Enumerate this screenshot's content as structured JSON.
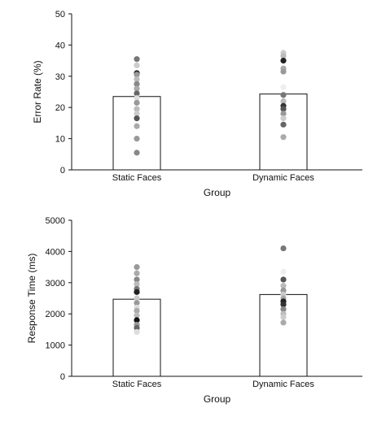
{
  "chart_data": [
    {
      "type": "bar",
      "categories": [
        "Static Faces",
        "Dynamic Faces"
      ],
      "values": [
        23.5,
        24.3
      ],
      "xlabel": "Group",
      "ylabel": "Error Rate (%)",
      "ylim": [
        0,
        50
      ],
      "yticks": [
        "0",
        "10",
        "20",
        "30",
        "40",
        "50"
      ],
      "grid": false,
      "individual_points": [
        [
          {
            "y": 35.5,
            "color": "#777777"
          },
          {
            "y": 33.5,
            "color": "#cccccc"
          },
          {
            "y": 31.0,
            "color": "#222222"
          },
          {
            "y": 30.5,
            "color": "#999999"
          },
          {
            "y": 29.0,
            "color": "#bbbbbb"
          },
          {
            "y": 27.5,
            "color": "#888888"
          },
          {
            "y": 26.0,
            "color": "#aaaaaa"
          },
          {
            "y": 24.5,
            "color": "#666666"
          },
          {
            "y": 23.0,
            "color": "#dddddd"
          },
          {
            "y": 21.5,
            "color": "#999999"
          },
          {
            "y": 19.5,
            "color": "#bbbbbb"
          },
          {
            "y": 18.0,
            "color": "#cccccc"
          },
          {
            "y": 16.5,
            "color": "#555555"
          },
          {
            "y": 14.0,
            "color": "#aaaaaa"
          },
          {
            "y": 10.0,
            "color": "#999999"
          },
          {
            "y": 5.5,
            "color": "#888888"
          }
        ],
        [
          {
            "y": 37.5,
            "color": "#cccccc"
          },
          {
            "y": 36.5,
            "color": "#bbbbbb"
          },
          {
            "y": 35.0,
            "color": "#222222"
          },
          {
            "y": 32.5,
            "color": "#aaaaaa"
          },
          {
            "y": 31.5,
            "color": "#999999"
          },
          {
            "y": 26.5,
            "color": "#eeeeee"
          },
          {
            "y": 24.0,
            "color": "#777777"
          },
          {
            "y": 22.0,
            "color": "#bbbbbb"
          },
          {
            "y": 20.5,
            "color": "#333333"
          },
          {
            "y": 19.5,
            "color": "#555555"
          },
          {
            "y": 18.0,
            "color": "#999999"
          },
          {
            "y": 16.5,
            "color": "#cccccc"
          },
          {
            "y": 14.5,
            "color": "#666666"
          },
          {
            "y": 10.5,
            "color": "#aaaaaa"
          }
        ]
      ]
    },
    {
      "type": "bar",
      "categories": [
        "Static Faces",
        "Dynamic Faces"
      ],
      "values": [
        2470,
        2620
      ],
      "xlabel": "Group",
      "ylabel": "Response Time (ms)",
      "ylim": [
        0,
        5000
      ],
      "yticks": [
        "0",
        "1000",
        "2000",
        "3000",
        "4000",
        "5000"
      ],
      "grid": false,
      "individual_points": [
        [
          {
            "y": 3500,
            "color": "#999999"
          },
          {
            "y": 3300,
            "color": "#aaaaaa"
          },
          {
            "y": 3100,
            "color": "#888888"
          },
          {
            "y": 2950,
            "color": "#bbbbbb"
          },
          {
            "y": 2800,
            "color": "#777777"
          },
          {
            "y": 2700,
            "color": "#222222"
          },
          {
            "y": 2500,
            "color": "#cccccc"
          },
          {
            "y": 2350,
            "color": "#999999"
          },
          {
            "y": 2200,
            "color": "#dddddd"
          },
          {
            "y": 2100,
            "color": "#aaaaaa"
          },
          {
            "y": 1950,
            "color": "#bbbbbb"
          },
          {
            "y": 1800,
            "color": "#111111"
          },
          {
            "y": 1650,
            "color": "#999999"
          },
          {
            "y": 1550,
            "color": "#666666"
          },
          {
            "y": 1420,
            "color": "#dddddd"
          }
        ],
        [
          {
            "y": 4100,
            "color": "#777777"
          },
          {
            "y": 3350,
            "color": "#eeeeee"
          },
          {
            "y": 3100,
            "color": "#555555"
          },
          {
            "y": 2900,
            "color": "#bbbbbb"
          },
          {
            "y": 2750,
            "color": "#999999"
          },
          {
            "y": 2620,
            "color": "#cccccc"
          },
          {
            "y": 2500,
            "color": "#aaaaaa"
          },
          {
            "y": 2400,
            "color": "#222222"
          },
          {
            "y": 2300,
            "color": "#333333"
          },
          {
            "y": 2150,
            "color": "#888888"
          },
          {
            "y": 2000,
            "color": "#bbbbbb"
          },
          {
            "y": 1900,
            "color": "#cccccc"
          },
          {
            "y": 1720,
            "color": "#aaaaaa"
          }
        ]
      ]
    }
  ]
}
